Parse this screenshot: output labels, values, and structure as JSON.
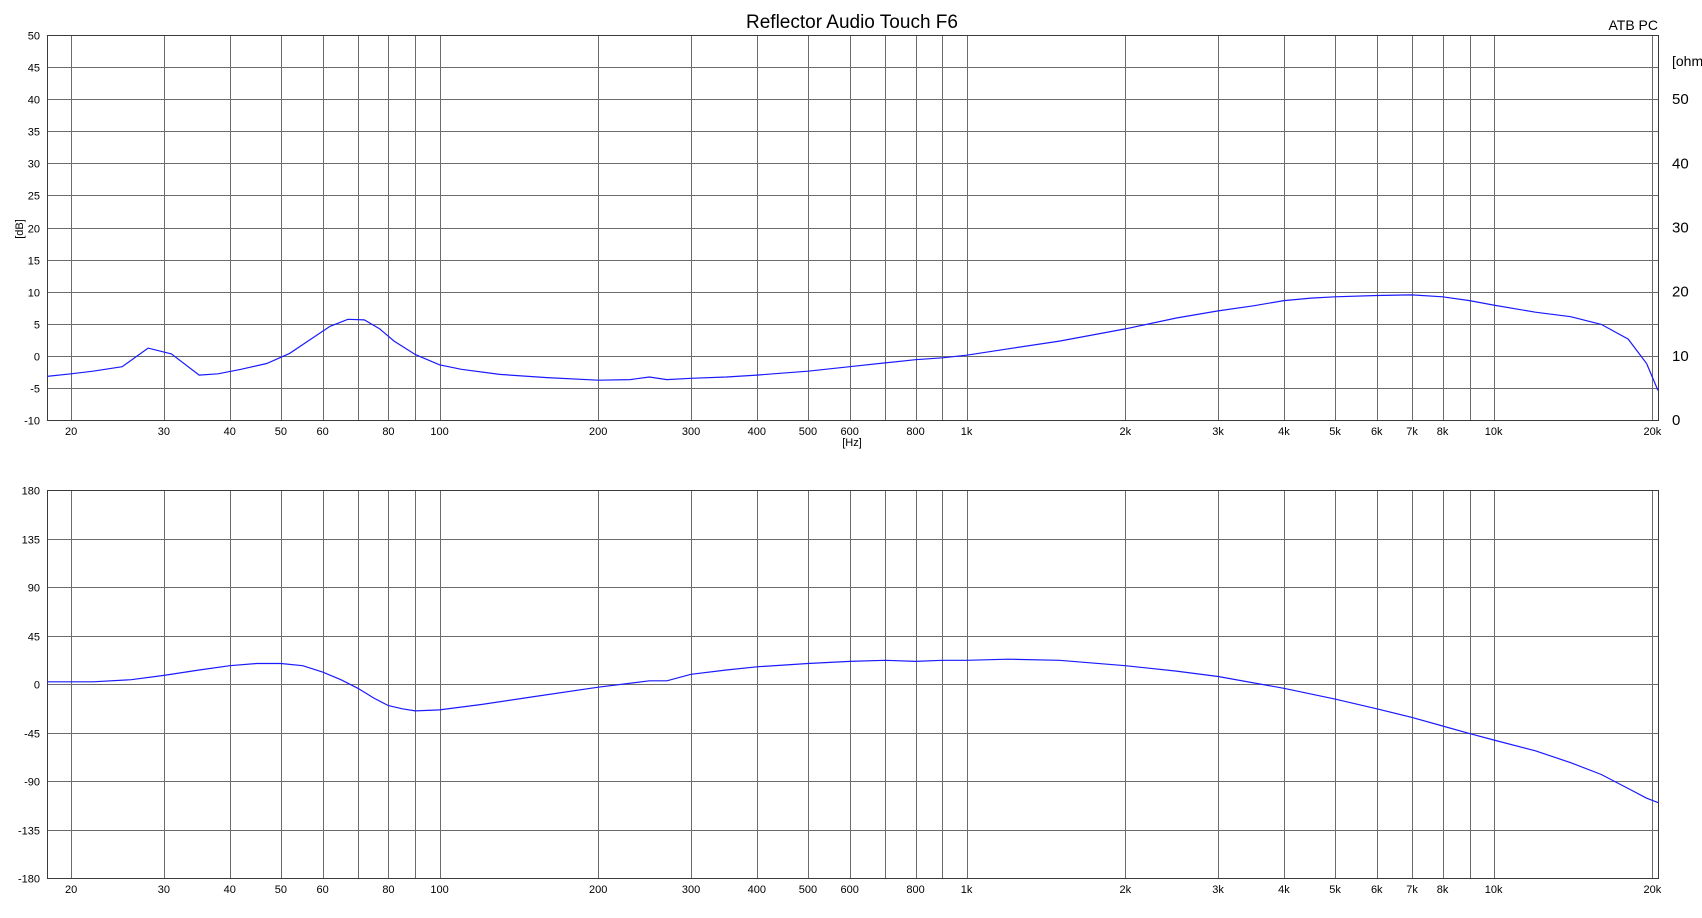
{
  "chart_data": [
    {
      "type": "line",
      "title": "Reflector Audio Touch F6",
      "corner_label": "ATB PC",
      "xlabel": "[Hz]",
      "ylabel": "[dB]",
      "y2label": "[ohm]",
      "xscale": "log",
      "xlim": [
        18,
        20500
      ],
      "ylim": [
        -10,
        50
      ],
      "y2lim": [
        0,
        60
      ],
      "grid": true,
      "x_gridlines": [
        20,
        30,
        40,
        50,
        60,
        70,
        80,
        90,
        100,
        200,
        300,
        400,
        500,
        600,
        700,
        800,
        900,
        1000,
        2000,
        3000,
        4000,
        5000,
        6000,
        7000,
        8000,
        9000,
        10000,
        20000
      ],
      "x_ticks": [
        {
          "v": 20,
          "label": "20"
        },
        {
          "v": 30,
          "label": "30"
        },
        {
          "v": 40,
          "label": "40"
        },
        {
          "v": 50,
          "label": "50"
        },
        {
          "v": 60,
          "label": "60"
        },
        {
          "v": 80,
          "label": "80"
        },
        {
          "v": 100,
          "label": "100"
        },
        {
          "v": 200,
          "label": "200"
        },
        {
          "v": 300,
          "label": "300"
        },
        {
          "v": 400,
          "label": "400"
        },
        {
          "v": 500,
          "label": "500"
        },
        {
          "v": 600,
          "label": "600"
        },
        {
          "v": 800,
          "label": "800"
        },
        {
          "v": 1000,
          "label": "1k"
        },
        {
          "v": 2000,
          "label": "2k"
        },
        {
          "v": 3000,
          "label": "3k"
        },
        {
          "v": 4000,
          "label": "4k"
        },
        {
          "v": 5000,
          "label": "5k"
        },
        {
          "v": 6000,
          "label": "6k"
        },
        {
          "v": 7000,
          "label": "7k"
        },
        {
          "v": 8000,
          "label": "8k"
        },
        {
          "v": 10000,
          "label": "10k"
        },
        {
          "v": 20000,
          "label": "20k"
        }
      ],
      "y_ticks": [
        {
          "v": 50,
          "label": "50"
        },
        {
          "v": 45,
          "label": "45"
        },
        {
          "v": 40,
          "label": "40"
        },
        {
          "v": 35,
          "label": "35"
        },
        {
          "v": 30,
          "label": "30"
        },
        {
          "v": 25,
          "label": "25"
        },
        {
          "v": 20,
          "label": "20"
        },
        {
          "v": 15,
          "label": "15"
        },
        {
          "v": 10,
          "label": "10"
        },
        {
          "v": 5,
          "label": "5"
        },
        {
          "v": 0,
          "label": "0"
        },
        {
          "v": -5,
          "label": "-5"
        },
        {
          "v": -10,
          "label": "-10"
        }
      ],
      "y2_ticks": [
        {
          "v": 50,
          "label": "50"
        },
        {
          "v": 40,
          "label": "40"
        },
        {
          "v": 30,
          "label": "30"
        },
        {
          "v": 20,
          "label": "20"
        },
        {
          "v": 10,
          "label": "10"
        },
        {
          "v": 0,
          "label": "0"
        }
      ],
      "series": [
        {
          "color": "#1a1aff",
          "x": [
            18,
            20,
            22,
            25,
            28,
            31,
            35,
            38,
            42,
            47,
            52,
            57,
            62,
            67,
            72,
            77,
            82,
            90,
            100,
            110,
            130,
            160,
            200,
            230,
            250,
            270,
            300,
            350,
            400,
            500,
            600,
            700,
            800,
            900,
            1000,
            1200,
            1500,
            2000,
            2500,
            3000,
            3500,
            4000,
            4500,
            5000,
            6000,
            7000,
            8000,
            9000,
            10000,
            12000,
            14000,
            16000,
            18000,
            19500,
            20500
          ],
          "y": [
            -3.2,
            -2.8,
            -2.4,
            -1.7,
            1.2,
            0.3,
            -3.0,
            -2.8,
            -2.1,
            -1.2,
            0.4,
            2.6,
            4.6,
            5.7,
            5.6,
            4.2,
            2.3,
            0.2,
            -1.4,
            -2.1,
            -2.9,
            -3.4,
            -3.8,
            -3.7,
            -3.3,
            -3.7,
            -3.5,
            -3.3,
            -3.0,
            -2.4,
            -1.7,
            -1.1,
            -0.6,
            -0.3,
            0.1,
            1.1,
            2.3,
            4.2,
            5.9,
            7.0,
            7.8,
            8.6,
            9.0,
            9.2,
            9.4,
            9.5,
            9.2,
            8.6,
            7.9,
            6.8,
            6.1,
            4.9,
            2.6,
            -1.2,
            -5.4
          ]
        }
      ]
    },
    {
      "type": "line",
      "xscale": "log",
      "xlim": [
        18,
        20500
      ],
      "ylim": [
        -180,
        180
      ],
      "grid": true,
      "x_gridlines": [
        20,
        30,
        40,
        50,
        60,
        70,
        80,
        90,
        100,
        200,
        300,
        400,
        500,
        600,
        700,
        800,
        900,
        1000,
        2000,
        3000,
        4000,
        5000,
        6000,
        7000,
        8000,
        9000,
        10000,
        20000
      ],
      "x_ticks": [
        {
          "v": 20,
          "label": "20"
        },
        {
          "v": 30,
          "label": "30"
        },
        {
          "v": 40,
          "label": "40"
        },
        {
          "v": 50,
          "label": "50"
        },
        {
          "v": 60,
          "label": "60"
        },
        {
          "v": 80,
          "label": "80"
        },
        {
          "v": 100,
          "label": "100"
        },
        {
          "v": 200,
          "label": "200"
        },
        {
          "v": 300,
          "label": "300"
        },
        {
          "v": 400,
          "label": "400"
        },
        {
          "v": 500,
          "label": "500"
        },
        {
          "v": 600,
          "label": "600"
        },
        {
          "v": 800,
          "label": "800"
        },
        {
          "v": 1000,
          "label": "1k"
        },
        {
          "v": 2000,
          "label": "2k"
        },
        {
          "v": 3000,
          "label": "3k"
        },
        {
          "v": 4000,
          "label": "4k"
        },
        {
          "v": 5000,
          "label": "5k"
        },
        {
          "v": 6000,
          "label": "6k"
        },
        {
          "v": 7000,
          "label": "7k"
        },
        {
          "v": 8000,
          "label": "8k"
        },
        {
          "v": 10000,
          "label": "10k"
        },
        {
          "v": 20000,
          "label": "20k"
        }
      ],
      "y_ticks": [
        {
          "v": 180,
          "label": "180"
        },
        {
          "v": 135,
          "label": "135"
        },
        {
          "v": 90,
          "label": "90"
        },
        {
          "v": 45,
          "label": "45"
        },
        {
          "v": 0,
          "label": "0"
        },
        {
          "v": -45,
          "label": "-45"
        },
        {
          "v": -90,
          "label": "-90"
        },
        {
          "v": -135,
          "label": "-135"
        },
        {
          "v": -180,
          "label": "-180"
        }
      ],
      "series": [
        {
          "color": "#1a1aff",
          "x": [
            18,
            22,
            26,
            30,
            35,
            40,
            45,
            50,
            55,
            60,
            65,
            70,
            75,
            80,
            85,
            90,
            100,
            120,
            150,
            200,
            250,
            270,
            300,
            350,
            400,
            500,
            600,
            700,
            800,
            900,
            1000,
            1200,
            1500,
            2000,
            2500,
            3000,
            4000,
            5000,
            6000,
            7000,
            8000,
            9000,
            10000,
            12000,
            14000,
            16000,
            18000,
            19500,
            20500
          ],
          "y": [
            2,
            2,
            4,
            8,
            13,
            17,
            19,
            19,
            17,
            11,
            4,
            -4,
            -13,
            -20,
            -23,
            -25,
            -24,
            -19,
            -12,
            -3,
            3,
            3,
            9,
            13,
            16,
            19,
            21,
            22,
            21,
            22,
            22,
            23,
            22,
            17,
            12,
            7,
            -4,
            -14,
            -23,
            -31,
            -39,
            -46,
            -52,
            -62,
            -73,
            -84,
            -97,
            -106,
            -110
          ]
        }
      ]
    }
  ]
}
